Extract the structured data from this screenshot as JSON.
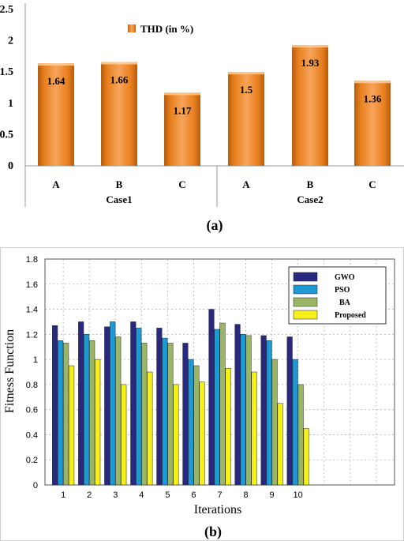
{
  "chart_data": [
    {
      "type": "bar",
      "caption": "(a)",
      "groups": [
        "Case1",
        "Case2"
      ],
      "categories": [
        "A",
        "B",
        "C",
        "A",
        "B",
        "C"
      ],
      "series": [
        {
          "name": "THD (in %)",
          "values": [
            1.64,
            1.66,
            1.17,
            1.5,
            1.93,
            1.36
          ]
        }
      ],
      "data_labels": [
        "1.64",
        "1.66",
        "1.17",
        "1.5",
        "1.93",
        "1.36"
      ],
      "ylim": [
        0,
        2.5
      ],
      "yticks": [
        "0",
        "0.5",
        "1",
        "1.5",
        "2",
        "2.5"
      ],
      "legend_position": "top",
      "grid": false,
      "colors": {
        "bar": "#f0962e"
      }
    },
    {
      "type": "bar",
      "caption": "(b)",
      "xlabel": "Iterations",
      "ylabel": "Fitness Function",
      "categories": [
        "1",
        "2",
        "3",
        "4",
        "5",
        "6",
        "7",
        "8",
        "9",
        "10"
      ],
      "series": [
        {
          "name": "GWO",
          "color": "#28287e",
          "values": [
            1.27,
            1.3,
            1.26,
            1.3,
            1.25,
            1.13,
            1.4,
            1.28,
            1.19,
            1.18
          ]
        },
        {
          "name": "PSO",
          "color": "#1b9ad6",
          "values": [
            1.15,
            1.2,
            1.3,
            1.25,
            1.17,
            1.0,
            1.24,
            1.2,
            1.15,
            1.0
          ]
        },
        {
          "name": "BA",
          "color": "#9bb567",
          "values": [
            1.13,
            1.15,
            1.18,
            1.13,
            1.13,
            0.95,
            1.29,
            1.19,
            1.0,
            0.8
          ]
        },
        {
          "name": "Proposed",
          "color": "#f5f01a",
          "values": [
            0.95,
            1.0,
            0.8,
            0.9,
            0.8,
            0.82,
            0.93,
            0.9,
            0.65,
            0.45
          ]
        }
      ],
      "ylim": [
        0,
        1.8
      ],
      "yticks": [
        "0",
        "0.2",
        "0.4",
        "0.6",
        "0.8",
        "1",
        "1.2",
        "1.4",
        "1.6",
        "1.8"
      ],
      "xlim": [
        0.3,
        13.7
      ],
      "legend_position": "top-right",
      "grid": true
    }
  ]
}
